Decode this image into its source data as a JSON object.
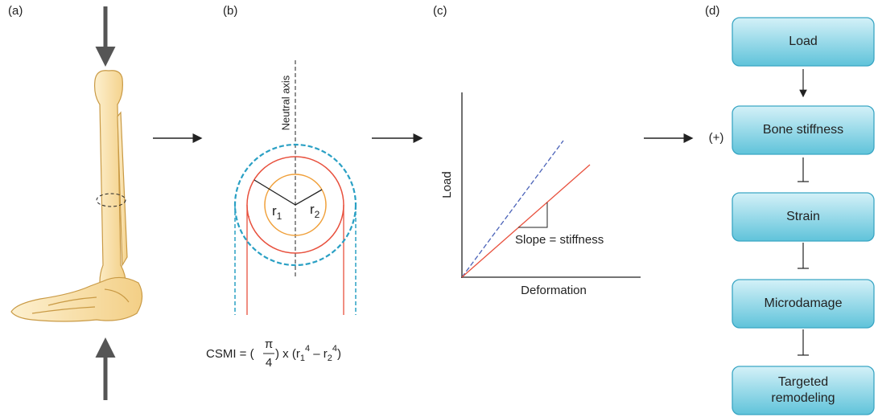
{
  "panels": {
    "a": "(a)",
    "b": "(b)",
    "c": "(c)",
    "d": "(d)"
  },
  "cross_section": {
    "neutral_axis": "Neutral axis",
    "radius_labels": [
      {
        "base": "r",
        "sub": "1"
      },
      {
        "base": "r",
        "sub": "2"
      }
    ],
    "formula": {
      "lhs": "CSMI = (",
      "num": "π",
      "den": "4",
      "mid": ") x (r",
      "sub1": "1",
      "pow1": "4",
      "minus": " – r",
      "sub2": "2",
      "pow2": "4",
      "end": ")"
    }
  },
  "graph": {
    "y_label": "Load",
    "x_label": "Deformation",
    "annotation": "Slope = stiffness"
  },
  "flow": {
    "plus": "(+)",
    "nodes": [
      {
        "lines": [
          "Load"
        ]
      },
      {
        "lines": [
          "Bone stiffness"
        ]
      },
      {
        "lines": [
          "Strain"
        ]
      },
      {
        "lines": [
          "Microdamage"
        ]
      },
      {
        "lines": [
          "Targeted",
          "remodeling"
        ]
      }
    ]
  }
}
